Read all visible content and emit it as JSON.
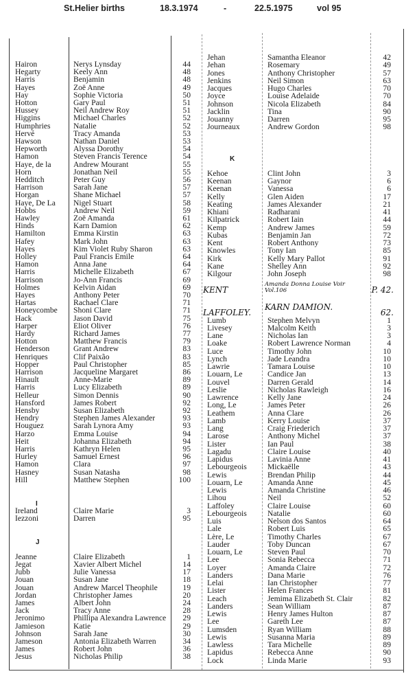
{
  "header": {
    "title": "St.Helier births",
    "date_from": "18.3.1974",
    "dash": "-",
    "date_to": "22.5.1975",
    "volume": "vol 95"
  },
  "left": {
    "items": [
      {
        "s": "Hairon",
        "f": "Nerys Lynsday",
        "n": "44"
      },
      {
        "s": "Hegarty",
        "f": "Keely Ann",
        "n": "48"
      },
      {
        "s": "Harris",
        "f": "Benjamin",
        "n": "48"
      },
      {
        "s": "Hayes",
        "f": "Zoë Anne",
        "n": "49"
      },
      {
        "s": "Hay",
        "f": "Sophie Victoria",
        "n": "50"
      },
      {
        "s": "Hotton",
        "f": "Gary Paul",
        "n": "51"
      },
      {
        "s": "Hussey",
        "f": "Neil Andrew Roy",
        "n": "51"
      },
      {
        "s": "Higgins",
        "f": "Michael Charles",
        "n": "52"
      },
      {
        "s": "Humphries",
        "f": "Natalie",
        "n": "52"
      },
      {
        "s": "Hervé",
        "f": "Tracy Amanda",
        "n": "53"
      },
      {
        "s": "Hawson",
        "f": "Nathan Daniel",
        "n": "53"
      },
      {
        "s": "Hepworth",
        "f": "Alyssa Dorothy",
        "n": "54"
      },
      {
        "s": "Hamon",
        "f": "Steven Francis Terence",
        "n": "54"
      },
      {
        "s": "Haye, de la",
        "f": "Andrew Mourant",
        "n": "55"
      },
      {
        "s": "Horn",
        "f": "Jonathan Neil",
        "n": "55"
      },
      {
        "s": "Hedditch",
        "f": "Peter Guy",
        "n": "56"
      },
      {
        "s": "Harrison",
        "f": "Sarah Jane",
        "n": "57"
      },
      {
        "s": "Horgan",
        "f": "Shane Michael",
        "n": "57"
      },
      {
        "s": "Haye, De La",
        "f": "Nigel Stuart",
        "n": "58"
      },
      {
        "s": "Hobbs",
        "f": "Andrew Neil",
        "n": "59"
      },
      {
        "s": "Hawley",
        "f": "Zoë Amanda",
        "n": "61"
      },
      {
        "s": "Hinds",
        "f": "Karn Damion",
        "n": "62"
      },
      {
        "s": "Hamilton",
        "f": "Emma Kirstin",
        "n": "63"
      },
      {
        "s": "Hafey",
        "f": "Mark John",
        "n": "63"
      },
      {
        "s": "Hayes",
        "f": "Kim Violet Ruby Sharon",
        "n": "63"
      },
      {
        "s": "Holley",
        "f": "Paul Francis Emile",
        "n": "64"
      },
      {
        "s": "Hamon",
        "f": "Anna Jane",
        "n": "64"
      },
      {
        "s": "Harris",
        "f": "Michelle Elizabeth",
        "n": "67"
      },
      {
        "s": "Harrison",
        "f": "Jo-Ann Francis",
        "n": "69"
      },
      {
        "s": "Holmes",
        "f": "Kelvin Aidan",
        "n": "69"
      },
      {
        "s": "Hayes",
        "f": "Anthony Peter",
        "n": "70"
      },
      {
        "s": "Hartas",
        "f": "Rachael Clare",
        "n": "71"
      },
      {
        "s": "Honeycombe",
        "f": "Shoni Clare",
        "n": "71"
      },
      {
        "s": "Hack",
        "f": "Jason David",
        "n": "75"
      },
      {
        "s": "Harper",
        "f": "Eliot Oliver",
        "n": "76"
      },
      {
        "s": "Hardy",
        "f": "Richard James",
        "n": "77"
      },
      {
        "s": "Hotton",
        "f": "Matthew Francis",
        "n": "79"
      },
      {
        "s": "Henderson",
        "f": "Grant Andrew",
        "n": "83"
      },
      {
        "s": "Henriques",
        "f": "Clif Paixão",
        "n": "83"
      },
      {
        "s": "Hopper",
        "f": "Paul Christopher",
        "n": "85"
      },
      {
        "s": "Harrison",
        "f": "Jacqueline Margaret",
        "n": "86"
      },
      {
        "s": "Hinault",
        "f": "Anne-Marie",
        "n": "89"
      },
      {
        "s": "Harris",
        "f": "Lucy Elizabeth",
        "n": "89"
      },
      {
        "s": "Helleur",
        "f": "Simon Dennis",
        "n": "90"
      },
      {
        "s": "Hansford",
        "f": "James Robert",
        "n": "92"
      },
      {
        "s": "Hensby",
        "f": "Susan Elizabeth",
        "n": "92"
      },
      {
        "s": "Hendry",
        "f": "Stephen James Alexander",
        "n": "93"
      },
      {
        "s": "Houguez",
        "f": "Sarah Lynora Amy",
        "n": "93"
      },
      {
        "s": "Harzo",
        "f": "Emma Louise",
        "n": "94"
      },
      {
        "s": "Heit",
        "f": "Johanna Elizabeth",
        "n": "94"
      },
      {
        "s": "Harris",
        "f": "Kathryn Helen",
        "n": "95"
      },
      {
        "s": "Hurley",
        "f": "Samuel Ernest",
        "n": "96"
      },
      {
        "s": "Hamon",
        "f": "Clara",
        "n": "97"
      },
      {
        "s": "Hasney",
        "f": "Susan Natasha",
        "n": "98"
      },
      {
        "s": "Hill",
        "f": "Matthew Stephen",
        "n": "100"
      },
      {
        "type": "blank"
      },
      {
        "type": "blank"
      },
      {
        "letter": "I"
      },
      {
        "s": "Ireland",
        "f": "Claire Marie",
        "n": "3"
      },
      {
        "s": "Iezzoni",
        "f": "Darren",
        "n": "95"
      },
      {
        "type": "blank"
      },
      {
        "type": "blank"
      },
      {
        "letter": "J"
      },
      {
        "type": "blank"
      },
      {
        "s": "Jeanne",
        "f": "Claire Elizabeth",
        "n": "1"
      },
      {
        "s": "Jegat",
        "f": "Xavier Albert Michel",
        "n": "14"
      },
      {
        "s": "Jubb",
        "f": "Julie Vanessa",
        "n": "17"
      },
      {
        "s": "Jouan",
        "f": "Susan Jane",
        "n": "18"
      },
      {
        "s": "Jouan",
        "f": "Andrew Marcel Theophile",
        "n": "19"
      },
      {
        "s": "Jordan",
        "f": "Christopher James",
        "n": "20"
      },
      {
        "s": "James",
        "f": "Albert John",
        "n": "24"
      },
      {
        "s": "Jack",
        "f": "Tracy Anne",
        "n": "28"
      },
      {
        "s": "Jeronimo",
        "f": "Phillipa Alexandra Lawrence",
        "n": "29"
      },
      {
        "s": "Jamieson",
        "f": "Katie",
        "n": "29"
      },
      {
        "s": "Johnson",
        "f": "Sarah Jane",
        "n": "30"
      },
      {
        "s": "Jameson",
        "f": "Antonia Elizabeth Warren",
        "n": "34"
      },
      {
        "s": "James",
        "f": "Robert John",
        "n": "36"
      },
      {
        "s": "Jesus",
        "f": "Nicholas Philip",
        "n": "38"
      }
    ]
  },
  "right": {
    "items": [
      {
        "s": "Jehan",
        "f": "Samantha Eleanor",
        "n": "42"
      },
      {
        "s": "Jehan",
        "f": "Rosemary",
        "n": "49"
      },
      {
        "s": "Jones",
        "f": "Anthony Christopher",
        "n": "57"
      },
      {
        "s": "Jenkins",
        "f": "Neil Simon",
        "n": "63"
      },
      {
        "s": "Jacques",
        "f": "Hugo Charles",
        "n": "70"
      },
      {
        "s": "Joyce",
        "f": "Louise Adelaide",
        "n": "70"
      },
      {
        "s": "Johnson",
        "f": "Nicola Elizabeth",
        "n": "84"
      },
      {
        "s": "Jacklin",
        "f": "Tina",
        "n": "90"
      },
      {
        "s": "Jouanny",
        "f": "Darren",
        "n": "95"
      },
      {
        "s": "Journeaux",
        "f": "Andrew Gordon",
        "n": "98"
      },
      {
        "type": "blank"
      },
      {
        "type": "blank"
      },
      {
        "type": "blank"
      },
      {
        "letter": "K"
      },
      {
        "type": "blank"
      },
      {
        "s": "Kehoe",
        "f": "Clint John",
        "n": "3"
      },
      {
        "s": "Keenan",
        "f": "Gaynor",
        "n": "6"
      },
      {
        "s": "Keenan",
        "f": "Vanessa",
        "n": "6"
      },
      {
        "s": "Kelly",
        "f": "Glen Aiden",
        "n": "17"
      },
      {
        "s": "Keating",
        "f": "James Alexander",
        "n": "21"
      },
      {
        "s": "Khiani",
        "f": "Radharani",
        "n": "41"
      },
      {
        "s": "Kilpatrick",
        "f": "Robert Iain",
        "n": "44"
      },
      {
        "s": "Kemp",
        "f": "Andrew James",
        "n": "59"
      },
      {
        "s": "Kubas",
        "f": "Benjamin Jan",
        "n": "72"
      },
      {
        "s": "Kent",
        "f": "Robert Anthony",
        "n": "73"
      },
      {
        "s": "Knowles",
        "f": "Tony Ian",
        "n": "85"
      },
      {
        "s": "Kirk",
        "f": "Kelly Mary Pallot",
        "n": "91"
      },
      {
        "s": "Kane",
        "f": "Shelley Ann",
        "n": "92"
      },
      {
        "s": "Kilgour",
        "f": "John Joseph",
        "n": "98"
      },
      {
        "type": "blank"
      },
      {
        "s": "KENT",
        "f": "Amanda Donna Louise Voir Vol.106",
        "n": "P. 42.",
        "hand": true
      },
      {
        "type": "blank"
      },
      {
        "type": "blank"
      },
      {
        "s": "LAFFOLEY.",
        "f": "KARN DAMION.",
        "n": "62.",
        "hand": true
      },
      {
        "s": "Lumb",
        "f": "Stephen Melvyn",
        "n": "1"
      },
      {
        "s": "Livesey",
        "f": "Malcolm Keith",
        "n": "3"
      },
      {
        "s": "Lane",
        "f": "Nicholas Ian",
        "n": "3"
      },
      {
        "s": "Loake",
        "f": "Robert Lawrence Norman",
        "n": "4"
      },
      {
        "s": "Luce",
        "f": "Timothy John",
        "n": "10"
      },
      {
        "s": "Lynch",
        "f": "Jade Leandra",
        "n": "10"
      },
      {
        "s": "Lawrie",
        "f": "Tamara Louise",
        "n": "10"
      },
      {
        "s": "Louarn, Le",
        "f": "Candice Jan",
        "n": "13"
      },
      {
        "s": "Louvel",
        "f": "Darren Gerald",
        "n": "14"
      },
      {
        "s": "Leslie",
        "f": "Nicholas Rawleigh",
        "n": "16"
      },
      {
        "s": "Lawrence",
        "f": "Kelly Jane",
        "n": "24"
      },
      {
        "s": "Long, Le",
        "f": "James Peter",
        "n": "26"
      },
      {
        "s": "Leathem",
        "f": "Anna Clare",
        "n": "26"
      },
      {
        "s": "Lamb",
        "f": "Kerry Louise",
        "n": "37"
      },
      {
        "s": "Lang",
        "f": "Craig Friederich",
        "n": "37"
      },
      {
        "s": "Larose",
        "f": "Anthony Michel",
        "n": "37"
      },
      {
        "s": "Lister",
        "f": "Ian Paul",
        "n": "38"
      },
      {
        "s": "Lagadu",
        "f": "Claire Louise",
        "n": "40"
      },
      {
        "s": "Lapidus",
        "f": "Lavinia Anne",
        "n": "41"
      },
      {
        "s": "Lebourgeois",
        "f": "Mickaëlle",
        "n": "43"
      },
      {
        "s": "Lewis",
        "f": "Brendan Philip",
        "n": "44"
      },
      {
        "s": "Louarn, Le",
        "f": "Amanda Anne",
        "n": "45"
      },
      {
        "s": "Lewis",
        "f": "Amanda Christine",
        "n": "46"
      },
      {
        "s": "Lihou",
        "f": "Neil",
        "n": "52"
      },
      {
        "s": "Laffoley",
        "f": "Claire Louise",
        "n": "60"
      },
      {
        "s": "Lebourgeois",
        "f": "Natalie",
        "n": "60"
      },
      {
        "s": "Luis",
        "f": "Nelson dos Santos",
        "n": "64"
      },
      {
        "s": "Lale",
        "f": "Robert Luis",
        "n": "65"
      },
      {
        "s": "Lère, Le",
        "f": "Timothy Charles",
        "n": "67"
      },
      {
        "s": "Lauder",
        "f": "Toby Duncan",
        "n": "67"
      },
      {
        "s": "Louarn, Le",
        "f": "Steven Paul",
        "n": "70"
      },
      {
        "s": "Lee",
        "f": "Sonia Rebecca",
        "n": "71"
      },
      {
        "s": "Loyer",
        "f": "Amanda Claire",
        "n": "72"
      },
      {
        "s": "Landers",
        "f": "Dana Marie",
        "n": "76"
      },
      {
        "s": "Lelai",
        "f": "Ian Christopher",
        "n": "77"
      },
      {
        "s": "Lister",
        "f": "Helen Frances",
        "n": "81"
      },
      {
        "s": "Leach",
        "f": "Jemima Elizabeth St. Clair",
        "n": "82"
      },
      {
        "s": "Landers",
        "f": "Sean William",
        "n": "87"
      },
      {
        "s": "Lewis",
        "f": "Henry James Hulton",
        "n": "87"
      },
      {
        "s": "Lee",
        "f": "Gareth Lee",
        "n": "87"
      },
      {
        "s": "Lumsden",
        "f": "Ryan William",
        "n": "88"
      },
      {
        "s": "Lewis",
        "f": "Susanna Maria",
        "n": "89"
      },
      {
        "s": "Lawless",
        "f": "Tara Michelle",
        "n": "89"
      },
      {
        "s": "Lapidus",
        "f": "Rebecca Anne",
        "n": "90"
      },
      {
        "s": "Lock",
        "f": "Linda Marie",
        "n": "93"
      }
    ]
  }
}
